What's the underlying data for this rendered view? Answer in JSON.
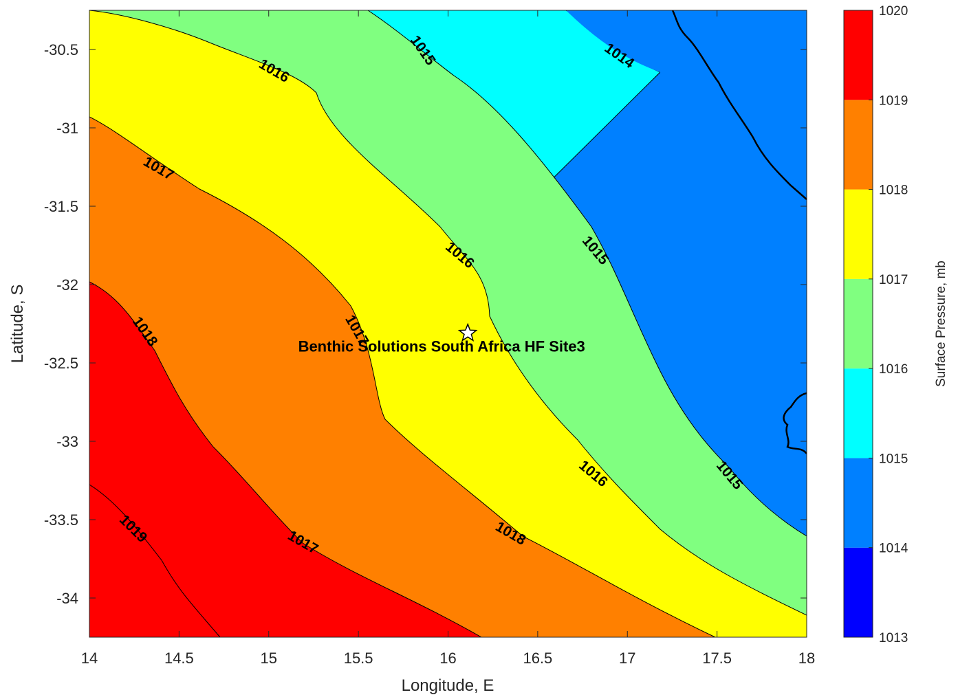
{
  "colors": {
    "1013": "#0000ff",
    "1014": "#0080ff",
    "1015": "#00ffff",
    "1016": "#80ff80",
    "1017": "#ffff00",
    "1018": "#ff8000",
    "1019": "#ff0000",
    "1020": "#800000"
  },
  "chart_data": {
    "type": "contour",
    "xlabel": "Longitude, E",
    "ylabel": "Latitude, S",
    "xlim": [
      14,
      18
    ],
    "ylim": [
      -34.25,
      -30.25
    ],
    "xticks": [
      "14",
      "14.5",
      "15",
      "15.5",
      "16",
      "16.5",
      "17",
      "17.5",
      "18"
    ],
    "yticks": [
      "-30.5",
      "-31",
      "-31.5",
      "-32",
      "-32.5",
      "-33",
      "-33.5",
      "-34"
    ],
    "colorbar": {
      "label": "Surface Pressure, mb",
      "min": 1013,
      "max": 1020,
      "ticks": [
        "1013",
        "1014",
        "1015",
        "1016",
        "1017",
        "1018",
        "1019",
        "1020"
      ]
    },
    "contour_levels": [
      1014,
      1015,
      1016,
      1017,
      1018,
      1019
    ],
    "contour_labels": [
      "1014",
      "1015",
      "1016",
      "1016",
      "1017",
      "1015",
      "1018",
      "1017",
      "1016",
      "1015",
      "1019",
      "1018",
      "1017"
    ],
    "site": {
      "name": "Benthic Solutions South Africa HF Site3",
      "lon": 16.11,
      "lat": -32.31
    }
  }
}
